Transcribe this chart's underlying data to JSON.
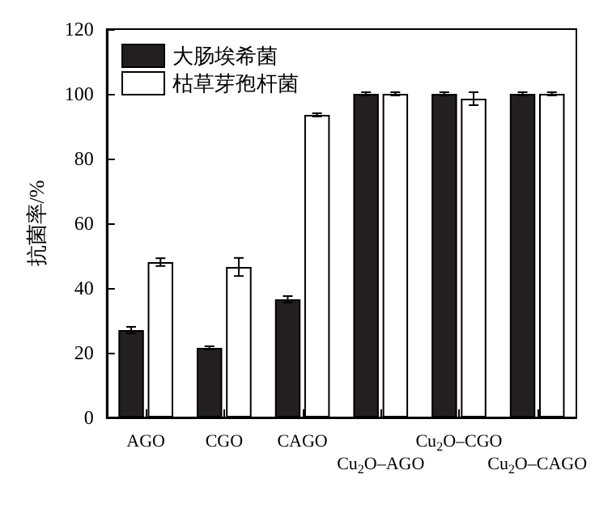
{
  "chart_data": {
    "type": "bar",
    "ylabel": "抗菌率/%",
    "categories": [
      "AGO",
      "CGO",
      "CAGO",
      "Cu$_{2}$O–AGO",
      "Cu$_{2}$O–CGO",
      "Cu$_{2}$O–CAGO"
    ],
    "series": [
      {
        "name": "大肠埃希菌",
        "color": "#231f20",
        "values": [
          27,
          21.5,
          36.5,
          100,
          100,
          100
        ],
        "errors": [
          1,
          0.5,
          1,
          0.5,
          0.5,
          0.5
        ]
      },
      {
        "name": "枯草芽孢杆菌",
        "color": "#ffffff",
        "values": [
          48,
          46.5,
          93.5,
          100,
          98.5,
          100
        ],
        "errors": [
          1.2,
          2.8,
          0.5,
          0.5,
          2,
          0.5
        ]
      }
    ],
    "ylim": [
      0,
      120
    ],
    "yticks": [
      0,
      20,
      40,
      60,
      80,
      100,
      120
    ],
    "legend": "top left",
    "grid": false
  }
}
